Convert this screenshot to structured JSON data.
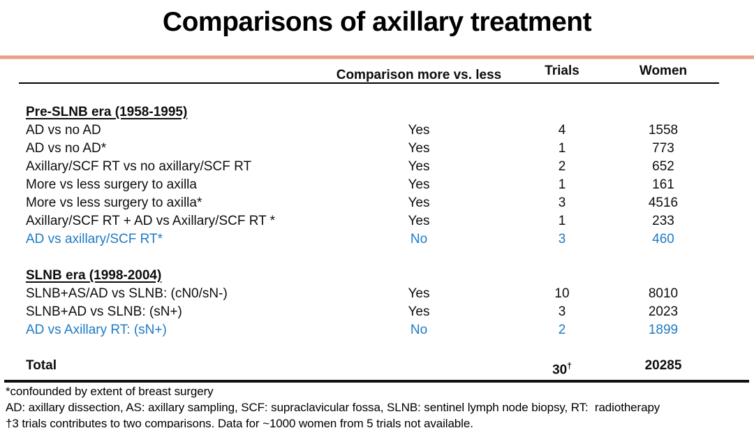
{
  "title": "Comparisons of axillary treatment",
  "colors": {
    "accent_rule": "#E8A08B",
    "highlight_blue": "#1E7BC4"
  },
  "table": {
    "headers": {
      "comparison": "Comparison more vs. less",
      "trials": "Trials",
      "women": "Women"
    },
    "groups": [
      {
        "heading": "Pre-SLNB era (1958-1995)",
        "rows": [
          {
            "label": "AD vs no AD",
            "comparison": "Yes",
            "trials": "4",
            "women": "1558",
            "highlight": false
          },
          {
            "label": "AD vs no AD*",
            "comparison": "Yes",
            "trials": "1",
            "women": "773",
            "highlight": false
          },
          {
            "label": "Axillary/SCF RT vs no axillary/SCF RT",
            "comparison": "Yes",
            "trials": "2",
            "women": "652",
            "highlight": false
          },
          {
            "label": "More vs less surgery to axilla",
            "comparison": "Yes",
            "trials": "1",
            "women": "161",
            "highlight": false
          },
          {
            "label": "More vs less surgery to axilla*",
            "comparison": "Yes",
            "trials": "3",
            "women": "4516",
            "highlight": false
          },
          {
            "label": "Axillary/SCF RT + AD vs Axillary/SCF RT *",
            "comparison": "Yes",
            "trials": "1",
            "women": "233",
            "highlight": false
          },
          {
            "label": "AD vs axillary/SCF RT*",
            "comparison": "No",
            "trials": "3",
            "women": "460",
            "highlight": true
          }
        ]
      },
      {
        "heading": "SLNB era (1998-2004)",
        "rows": [
          {
            "label": "SLNB+AS/AD vs SLNB: (cN0/sN-)",
            "comparison": "Yes",
            "trials": "10",
            "women": "8010",
            "highlight": false
          },
          {
            "label": "SLNB+AD vs SLNB: (sN+)",
            "comparison": "Yes",
            "trials": "3",
            "women": "2023",
            "highlight": false
          },
          {
            "label": "AD vs Axillary RT: (sN+)",
            "comparison": "No",
            "trials": "2",
            "women": "1899",
            "highlight": true
          }
        ]
      }
    ],
    "total": {
      "label": "Total",
      "trials": "30",
      "trials_superscript": "†",
      "women": "20285"
    }
  },
  "footnotes": [
    "*confounded by extent of breast surgery",
    "AD: axillary dissection, AS: axillary sampling, SCF: supraclavicular fossa, SLNB: sentinel lymph node biopsy, RT:  radiotherapy",
    "†3 trials contributes to two comparisons. Data for ~1000 women from 5 trials not available."
  ]
}
